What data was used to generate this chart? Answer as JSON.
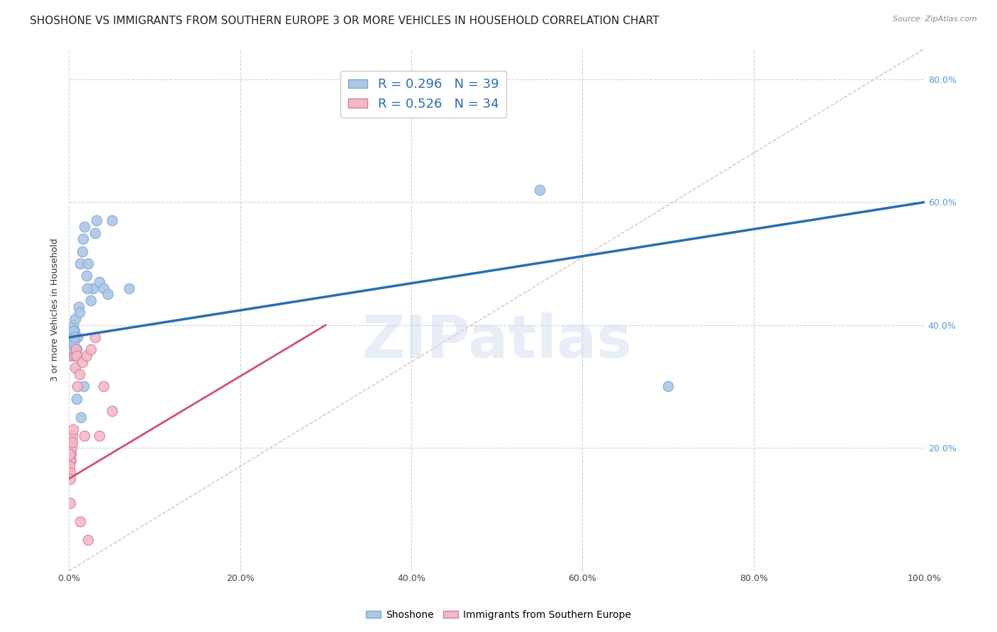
{
  "title": "SHOSHONE VS IMMIGRANTS FROM SOUTHERN EUROPE 3 OR MORE VEHICLES IN HOUSEHOLD CORRELATION CHART",
  "source": "Source: ZipAtlas.com",
  "ylabel": "3 or more Vehicles in Household",
  "blue_label": "Shoshone",
  "pink_label": "Immigrants from Southern Europe",
  "blue_R": 0.296,
  "blue_N": 39,
  "pink_R": 0.526,
  "pink_N": 34,
  "blue_color": "#aec6e8",
  "blue_line_color": "#2b6cb0",
  "pink_color": "#f4b8c8",
  "pink_line_color": "#d05070",
  "blue_edge_color": "#7aaad0",
  "pink_edge_color": "#d08098",
  "blue_x": [
    0.2,
    0.3,
    0.4,
    0.5,
    0.6,
    0.7,
    0.8,
    0.9,
    1.0,
    1.1,
    1.2,
    1.3,
    1.5,
    1.6,
    1.8,
    2.0,
    2.2,
    2.5,
    2.8,
    3.0,
    3.2,
    3.5,
    4.0,
    4.5,
    5.0,
    0.15,
    0.25,
    0.35,
    0.45,
    0.55,
    0.65,
    0.75,
    0.85,
    1.4,
    1.7,
    2.1,
    7.0,
    55.0,
    70.0
  ],
  "blue_y": [
    38.0,
    37.0,
    36.0,
    40.0,
    39.0,
    41.0,
    35.0,
    36.0,
    38.0,
    43.0,
    42.0,
    50.0,
    52.0,
    54.0,
    56.0,
    48.0,
    50.0,
    44.0,
    46.0,
    55.0,
    57.0,
    47.0,
    46.0,
    45.0,
    57.0,
    35.0,
    37.0,
    36.0,
    39.0,
    37.0,
    38.0,
    35.0,
    28.0,
    25.0,
    30.0,
    46.0,
    46.0,
    62.0,
    30.0
  ],
  "pink_x": [
    0.05,
    0.08,
    0.1,
    0.12,
    0.15,
    0.18,
    0.2,
    0.25,
    0.3,
    0.35,
    0.4,
    0.5,
    0.6,
    0.7,
    0.8,
    0.9,
    1.0,
    1.2,
    1.5,
    1.8,
    2.0,
    2.5,
    3.0,
    3.5,
    4.0,
    5.0,
    0.05,
    0.06,
    0.07,
    0.09,
    0.11,
    0.13,
    1.3,
    2.2
  ],
  "pink_y": [
    20.0,
    19.0,
    22.0,
    21.0,
    20.0,
    18.0,
    21.0,
    19.0,
    20.0,
    22.0,
    21.0,
    23.0,
    35.0,
    33.0,
    36.0,
    35.0,
    30.0,
    32.0,
    34.0,
    22.0,
    35.0,
    36.0,
    38.0,
    22.0,
    30.0,
    26.0,
    18.0,
    19.0,
    17.0,
    16.0,
    15.0,
    11.0,
    8.0,
    5.0
  ],
  "xlim": [
    0.0,
    100.0
  ],
  "ylim": [
    0.0,
    85.0
  ],
  "xticks": [
    0.0,
    20.0,
    40.0,
    60.0,
    80.0,
    100.0
  ],
  "yticks": [
    0.0,
    20.0,
    40.0,
    60.0,
    80.0
  ],
  "xticklabels_bottom": [
    "0.0%",
    "20.0%",
    "40.0%",
    "60.0%",
    "80.0%",
    "100.0%"
  ],
  "yticklabels_right": [
    "",
    "20.0%",
    "40.0%",
    "60.0%",
    "80.0%"
  ],
  "grid_color": "#c8d4e8",
  "background_color": "#ffffff",
  "watermark": "ZIPatlas",
  "marker_size": 110,
  "title_fontsize": 11,
  "axis_label_fontsize": 9,
  "tick_fontsize": 9,
  "legend_fontsize": 13,
  "right_tick_color": "#5599dd",
  "bottom_tick_color": "#444444",
  "blue_line_x0": 0.0,
  "blue_line_y0": 38.0,
  "blue_line_x1": 100.0,
  "blue_line_y1": 60.0,
  "pink_line_x0": 0.0,
  "pink_line_y0": 15.0,
  "pink_line_x1": 30.0,
  "pink_line_y1": 40.0
}
